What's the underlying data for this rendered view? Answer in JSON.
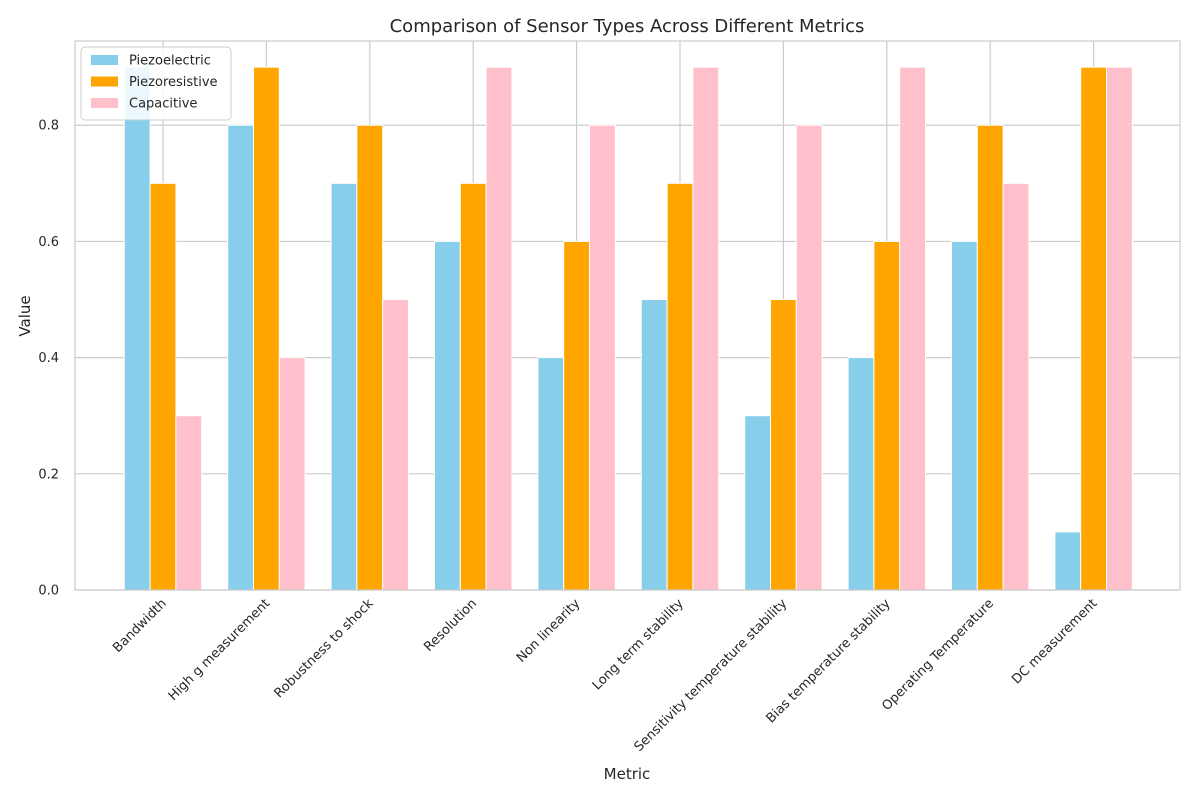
{
  "chart_data": {
    "type": "bar",
    "title": "Comparison of Sensor Types Across Different Metrics",
    "xlabel": "Metric",
    "ylabel": "Value",
    "ylim": [
      0,
      0.945
    ],
    "yticks": [
      "0.0",
      "0.2",
      "0.4",
      "0.6",
      "0.8"
    ],
    "grid": true,
    "legend_position": "top-left",
    "categories": [
      "Bandwidth",
      "High g measurement",
      "Robustness to shock",
      "Resolution",
      "Non linearity",
      "Long term stability",
      "Sensitivity temperature stability",
      "Bias temperature stability",
      "Operating Temperature",
      "DC measurement"
    ],
    "series": [
      {
        "name": "Piezoelectric",
        "color": "#87CEEB",
        "values": [
          0.9,
          0.8,
          0.7,
          0.6,
          0.4,
          0.5,
          0.3,
          0.4,
          0.6,
          0.1
        ]
      },
      {
        "name": "Piezoresistive",
        "color": "#FFA500",
        "values": [
          0.7,
          0.9,
          0.8,
          0.7,
          0.6,
          0.7,
          0.5,
          0.6,
          0.8,
          0.9
        ]
      },
      {
        "name": "Capacitive",
        "color": "#FFC0CB",
        "values": [
          0.3,
          0.4,
          0.5,
          0.9,
          0.8,
          0.9,
          0.8,
          0.9,
          0.7,
          0.9
        ]
      }
    ]
  }
}
